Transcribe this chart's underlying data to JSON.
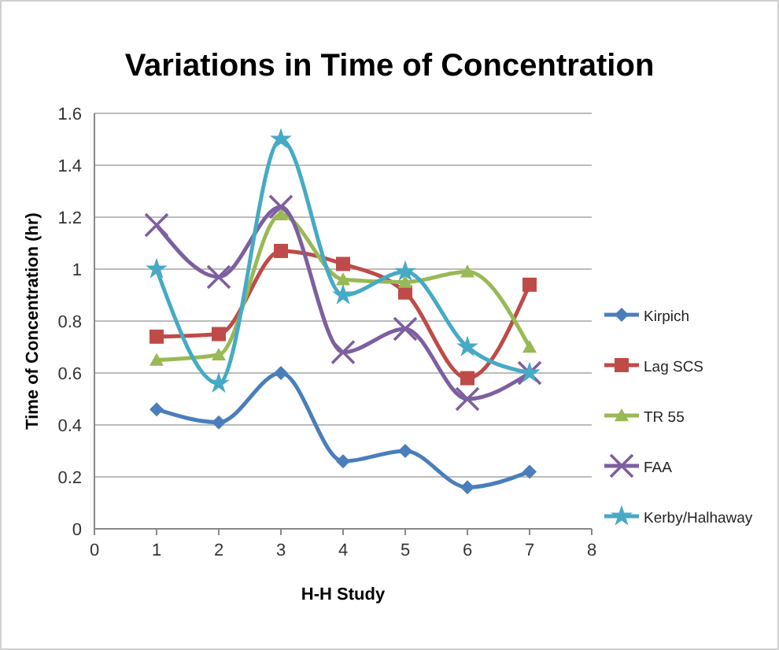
{
  "chart_data": {
    "type": "line",
    "title": "Variations in Time of Concentration",
    "xlabel": "H-H Study",
    "ylabel": "Time of Concentration  (hr)",
    "x": [
      1,
      2,
      3,
      4,
      5,
      6,
      7
    ],
    "xlim": [
      0,
      8
    ],
    "xticks": [
      0,
      1,
      2,
      3,
      4,
      5,
      6,
      7,
      8
    ],
    "ylim": [
      0,
      1.6
    ],
    "yticks": [
      0,
      0.2,
      0.4,
      0.6,
      0.8,
      1,
      1.2,
      1.4,
      1.6
    ],
    "grid": "y",
    "legend": "right",
    "series": [
      {
        "name": "Kirpich",
        "color": "#4a7ebb",
        "marker": "diamond",
        "values": [
          0.46,
          0.41,
          0.6,
          0.26,
          0.3,
          0.16,
          0.22
        ]
      },
      {
        "name": "Lag SCS",
        "color": "#be4b48",
        "marker": "square",
        "values": [
          0.74,
          0.75,
          1.07,
          1.02,
          0.91,
          0.58,
          0.94
        ]
      },
      {
        "name": "TR 55",
        "color": "#98b954",
        "marker": "triangle",
        "values": [
          0.65,
          0.67,
          1.21,
          0.96,
          0.95,
          0.99,
          0.7
        ]
      },
      {
        "name": "FAA",
        "color": "#7d5fa0",
        "marker": "cross",
        "values": [
          1.17,
          0.97,
          1.24,
          0.68,
          0.77,
          0.5,
          0.6
        ]
      },
      {
        "name": "Kerby/Halhaway",
        "color": "#46aac5",
        "marker": "star",
        "values": [
          1.0,
          0.56,
          1.5,
          0.9,
          0.99,
          0.7,
          0.6
        ]
      }
    ]
  }
}
